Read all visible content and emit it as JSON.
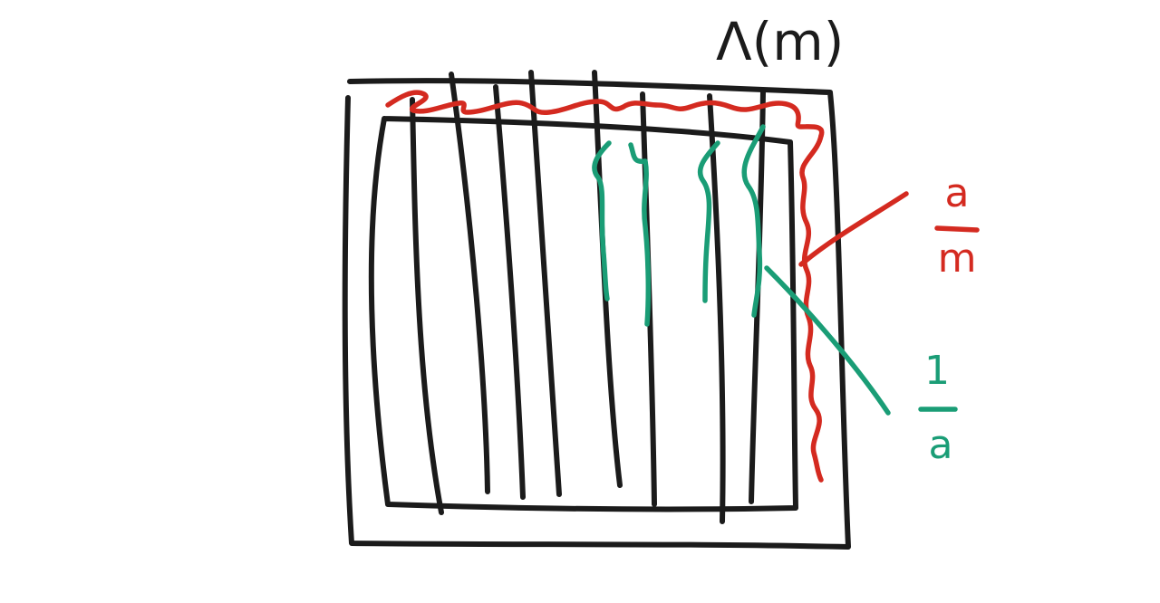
{
  "title_label": "Λ(m)",
  "labels": {
    "red_numerator": "a",
    "red_denominator": "m",
    "green_numerator": "1",
    "green_denominator": "a"
  },
  "colors": {
    "ink": "#1b1b1b",
    "red": "#d42a20",
    "green": "#1a9d76",
    "background": "#ffffff"
  }
}
